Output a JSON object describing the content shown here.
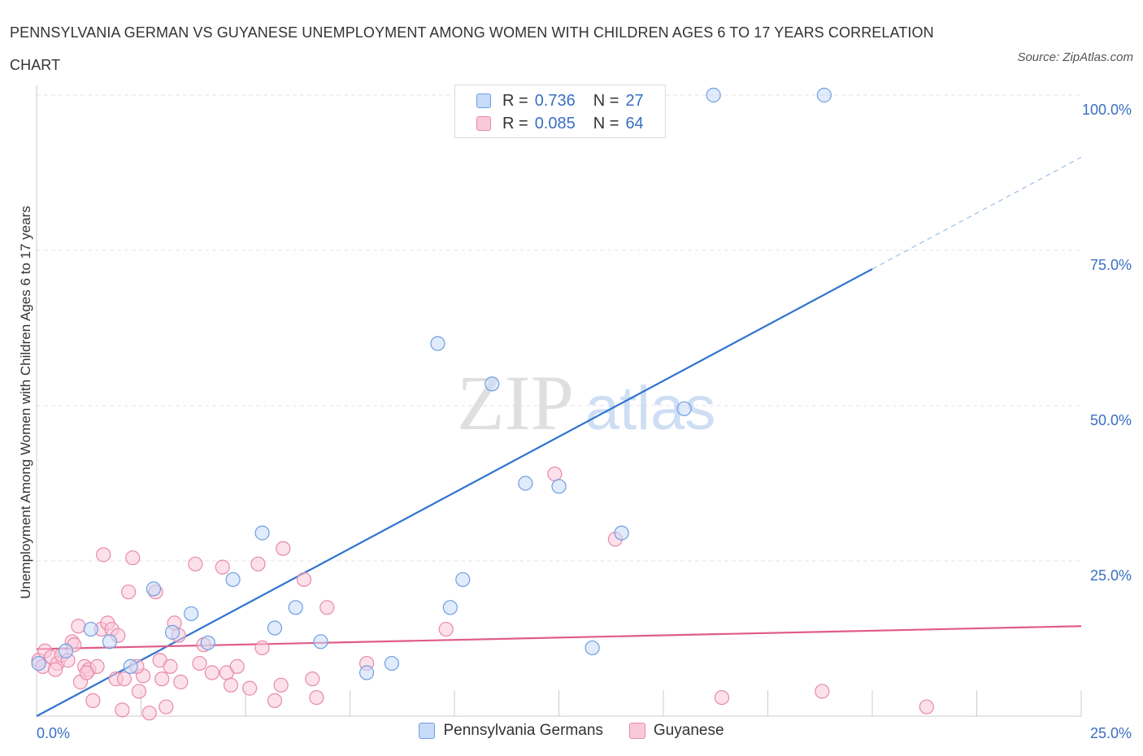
{
  "title": "PENNSYLVANIA GERMAN VS GUYANESE UNEMPLOYMENT AMONG WOMEN WITH CHILDREN AGES 6 TO 17 YEARS CORRELATION CHART",
  "source": "Source: ZipAtlas.com",
  "watermark": {
    "zip": "ZIP",
    "atlas": "atlas"
  },
  "legend_stats": [
    {
      "r_label": "R =",
      "r_value": "0.736",
      "n_label": "N =",
      "n_value": "27",
      "color": "#aac8f0"
    },
    {
      "r_label": "R =",
      "r_value": "0.085",
      "n_label": "N =",
      "n_value": "64",
      "color": "#f5b8cb"
    }
  ],
  "chart_data": {
    "type": "scatter",
    "title": "PENNSYLVANIA GERMAN VS GUYANESE UNEMPLOYMENT AMONG WOMEN WITH CHILDREN AGES 6 TO 17 YEARS CORRELATION CHART",
    "ylabel": "Unemployment Among Women with Children Ages 6 to 17 years",
    "xlabel": "",
    "xlim": [
      0,
      25
    ],
    "ylim": [
      0,
      100
    ],
    "x_tick_labels": [
      {
        "value": 0,
        "label": "0.0%"
      },
      {
        "value": 25,
        "label": "25.0%"
      }
    ],
    "y_tick_labels": [
      {
        "value": 25,
        "label": "25.0%"
      },
      {
        "value": 50,
        "label": "50.0%"
      },
      {
        "value": 75,
        "label": "75.0%"
      },
      {
        "value": 100,
        "label": "100.0%"
      }
    ],
    "grid": true,
    "legend_position": "bottom",
    "series": [
      {
        "name": "Pennsylvania Germans",
        "color": "#6f9ee0",
        "fill": "#c6dafa",
        "line_color": "#2f74d0",
        "trend": {
          "x0": 0.0,
          "y0": 0.0,
          "x1": 20.0,
          "y1": 72.0,
          "dash_to_x": 25.0,
          "dash_to_y": 90.0
        },
        "points": [
          {
            "x": 0.05,
            "y": 8.5
          },
          {
            "x": 0.7,
            "y": 10.5
          },
          {
            "x": 1.3,
            "y": 14.0
          },
          {
            "x": 1.75,
            "y": 12.0
          },
          {
            "x": 2.25,
            "y": 8.0
          },
          {
            "x": 2.8,
            "y": 20.5
          },
          {
            "x": 3.25,
            "y": 13.5
          },
          {
            "x": 3.7,
            "y": 16.5
          },
          {
            "x": 4.1,
            "y": 11.8
          },
          {
            "x": 4.7,
            "y": 22.0
          },
          {
            "x": 5.4,
            "y": 29.5
          },
          {
            "x": 5.7,
            "y": 14.2
          },
          {
            "x": 6.2,
            "y": 17.5
          },
          {
            "x": 6.8,
            "y": 12.0
          },
          {
            "x": 7.9,
            "y": 7.0
          },
          {
            "x": 8.5,
            "y": 8.5
          },
          {
            "x": 9.6,
            "y": 60.0
          },
          {
            "x": 9.9,
            "y": 17.5
          },
          {
            "x": 10.2,
            "y": 22.0
          },
          {
            "x": 10.9,
            "y": 53.5
          },
          {
            "x": 11.7,
            "y": 37.5
          },
          {
            "x": 12.5,
            "y": 37.0
          },
          {
            "x": 13.3,
            "y": 11.0
          },
          {
            "x": 14.0,
            "y": 29.5
          },
          {
            "x": 15.5,
            "y": 49.5
          },
          {
            "x": 16.2,
            "y": 100.0
          },
          {
            "x": 18.85,
            "y": 100.0
          }
        ]
      },
      {
        "name": "Guyanese",
        "color": "#e88aa8",
        "fill": "#f9c9d8",
        "line_color": "#e05c8a",
        "trend": {
          "x0": 0.0,
          "y0": 10.8,
          "x1": 25.0,
          "y1": 14.5
        },
        "points": [
          {
            "x": 0.05,
            "y": 9.0
          },
          {
            "x": 0.15,
            "y": 8.0
          },
          {
            "x": 0.2,
            "y": 10.5
          },
          {
            "x": 0.35,
            "y": 9.5
          },
          {
            "x": 0.5,
            "y": 8.5
          },
          {
            "x": 0.6,
            "y": 9.8
          },
          {
            "x": 0.75,
            "y": 9.0
          },
          {
            "x": 0.85,
            "y": 12.0
          },
          {
            "x": 0.9,
            "y": 11.5
          },
          {
            "x": 1.0,
            "y": 14.5
          },
          {
            "x": 1.05,
            "y": 5.5
          },
          {
            "x": 1.15,
            "y": 8.0
          },
          {
            "x": 1.25,
            "y": 7.5
          },
          {
            "x": 1.35,
            "y": 2.5
          },
          {
            "x": 1.45,
            "y": 8.0
          },
          {
            "x": 1.55,
            "y": 14.0
          },
          {
            "x": 1.6,
            "y": 26.0
          },
          {
            "x": 1.7,
            "y": 15.0
          },
          {
            "x": 1.8,
            "y": 14.0
          },
          {
            "x": 1.9,
            "y": 6.0
          },
          {
            "x": 1.95,
            "y": 13.0
          },
          {
            "x": 2.05,
            "y": 1.0
          },
          {
            "x": 2.1,
            "y": 6.0
          },
          {
            "x": 2.2,
            "y": 20.0
          },
          {
            "x": 2.3,
            "y": 25.5
          },
          {
            "x": 2.45,
            "y": 4.0
          },
          {
            "x": 2.55,
            "y": 6.5
          },
          {
            "x": 2.7,
            "y": 0.5
          },
          {
            "x": 2.85,
            "y": 20.0
          },
          {
            "x": 2.95,
            "y": 9.0
          },
          {
            "x": 3.0,
            "y": 6.0
          },
          {
            "x": 3.1,
            "y": 1.5
          },
          {
            "x": 3.2,
            "y": 8.0
          },
          {
            "x": 3.3,
            "y": 15.0
          },
          {
            "x": 3.4,
            "y": 13.0
          },
          {
            "x": 3.45,
            "y": 5.5
          },
          {
            "x": 3.8,
            "y": 24.5
          },
          {
            "x": 3.9,
            "y": 8.5
          },
          {
            "x": 4.0,
            "y": 11.5
          },
          {
            "x": 4.2,
            "y": 7.0
          },
          {
            "x": 4.45,
            "y": 24.0
          },
          {
            "x": 4.55,
            "y": 7.0
          },
          {
            "x": 4.65,
            "y": 5.0
          },
          {
            "x": 4.8,
            "y": 8.0
          },
          {
            "x": 5.1,
            "y": 4.5
          },
          {
            "x": 5.3,
            "y": 24.5
          },
          {
            "x": 5.4,
            "y": 11.0
          },
          {
            "x": 5.7,
            "y": 2.5
          },
          {
            "x": 5.85,
            "y": 5.0
          },
          {
            "x": 5.9,
            "y": 27.0
          },
          {
            "x": 6.4,
            "y": 22.0
          },
          {
            "x": 6.6,
            "y": 6.0
          },
          {
            "x": 6.7,
            "y": 3.0
          },
          {
            "x": 6.95,
            "y": 17.5
          },
          {
            "x": 7.9,
            "y": 8.5
          },
          {
            "x": 9.8,
            "y": 14.0
          },
          {
            "x": 12.4,
            "y": 39.0
          },
          {
            "x": 13.85,
            "y": 28.5
          },
          {
            "x": 16.4,
            "y": 3.0
          },
          {
            "x": 18.8,
            "y": 4.0
          },
          {
            "x": 21.3,
            "y": 1.5
          },
          {
            "x": 0.45,
            "y": 7.5
          },
          {
            "x": 1.2,
            "y": 7.0
          },
          {
            "x": 2.4,
            "y": 8.0
          }
        ]
      }
    ]
  }
}
